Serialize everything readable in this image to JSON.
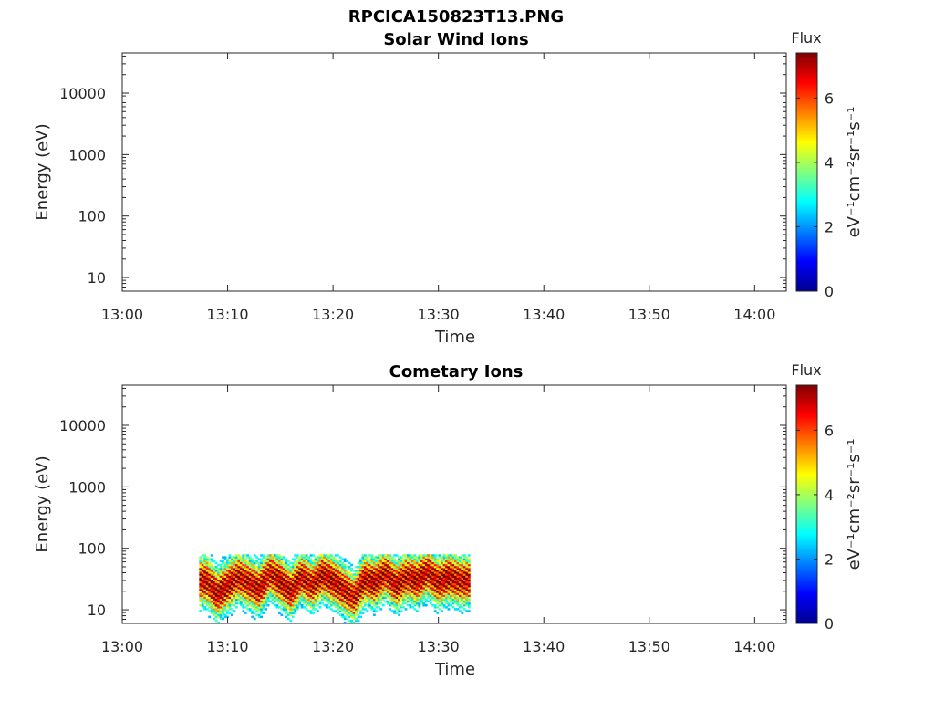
{
  "figure_title": "RPCICA150823T13.PNG",
  "chart_data": [
    {
      "type": "heatmap",
      "title": "Solar Wind Ions",
      "xlabel": "Time",
      "ylabel": "Energy (eV)",
      "y_scale": "log",
      "xlim": [
        "13:00",
        "14:03"
      ],
      "ylim": [
        6,
        45000
      ],
      "x_ticks": [
        "13:00",
        "13:10",
        "13:20",
        "13:30",
        "13:40",
        "13:50",
        "14:00"
      ],
      "y_ticks": [
        "10",
        "100",
        "1000",
        "10000"
      ],
      "colorbar": {
        "title": "Flux",
        "label": "eV⁻¹cm⁻²sr⁻¹s⁻¹",
        "range": [
          0,
          7.4
        ],
        "ticks": [
          "0",
          "2",
          "4",
          "6"
        ],
        "colormap": "jet"
      },
      "data_present": false
    },
    {
      "type": "heatmap",
      "title": "Cometary Ions",
      "xlabel": "Time",
      "ylabel": "Energy (eV)",
      "y_scale": "log",
      "xlim": [
        "13:00",
        "14:03"
      ],
      "ylim": [
        6,
        45000
      ],
      "x_ticks": [
        "13:00",
        "13:10",
        "13:20",
        "13:30",
        "13:40",
        "13:50",
        "14:00"
      ],
      "y_ticks": [
        "10",
        "100",
        "1000",
        "10000"
      ],
      "colorbar": {
        "title": "Flux",
        "label": "eV⁻¹cm⁻²sr⁻¹s⁻¹",
        "range": [
          0,
          7.4
        ],
        "ticks": [
          "0",
          "2",
          "4",
          "6"
        ],
        "colormap": "jet"
      },
      "data_present": true,
      "data_time_range": [
        "13:07.3",
        "13:33.0"
      ],
      "data_energy_range": [
        6,
        80
      ],
      "peak_band": {
        "times": [
          "13:08",
          "13:09",
          "13:10",
          "13:11",
          "13:12",
          "13:13",
          "13:14",
          "13:15",
          "13:16",
          "13:17",
          "13:18",
          "13:19",
          "13:20",
          "13:21",
          "13:22",
          "13:23",
          "13:24",
          "13:25",
          "13:26",
          "13:27",
          "13:28",
          "13:29",
          "13:30",
          "13:31",
          "13:32"
        ],
        "center_energy": [
          30,
          18,
          25,
          35,
          28,
          22,
          40,
          30,
          20,
          35,
          25,
          38,
          30,
          22,
          16,
          32,
          28,
          40,
          25,
          35,
          30,
          42,
          28,
          35,
          30
        ],
        "peak_flux": [
          7.2,
          7.4,
          7.3,
          7.1,
          7.2,
          7.3,
          7.0,
          7.4,
          7.3,
          7.2,
          7.1,
          7.3,
          7.4,
          7.2,
          7.0,
          7.3,
          7.4,
          7.2,
          7.3,
          7.1,
          7.4,
          7.2,
          7.3,
          7.4,
          7.2
        ]
      }
    }
  ]
}
